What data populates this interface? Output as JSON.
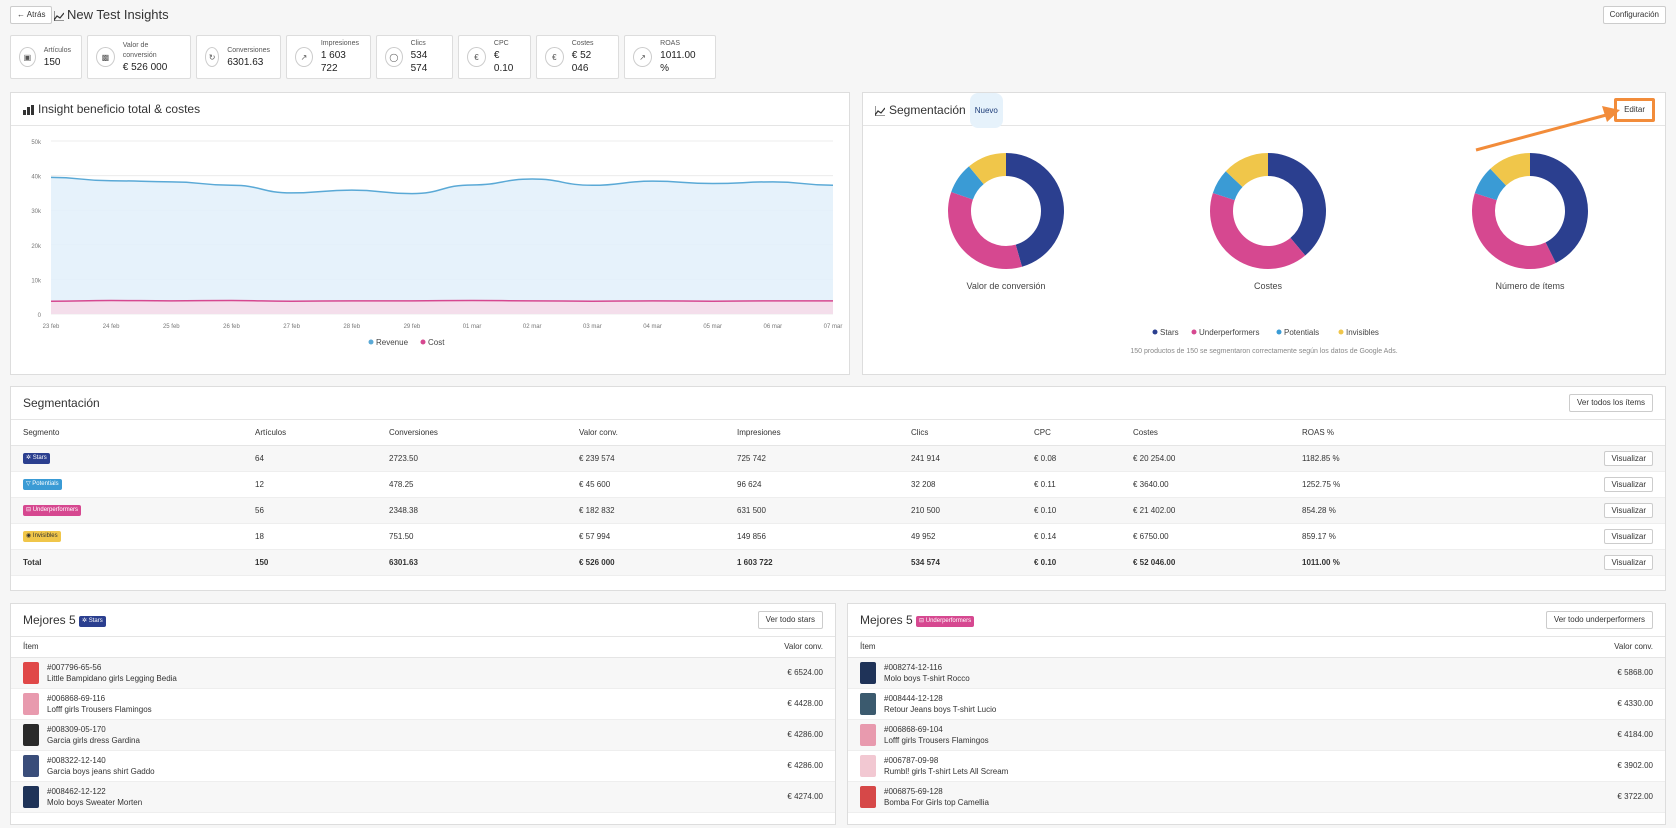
{
  "header": {
    "back_label": "Atrás",
    "title": "New Test Insights",
    "config_label": "Configuración"
  },
  "kpis": [
    {
      "label": "Artículos",
      "value": "150",
      "icon": "box-icon"
    },
    {
      "label": "Valor de conversión",
      "value": "€ 526 000",
      "icon": "money-icon"
    },
    {
      "label": "Conversiones",
      "value": "6301.63",
      "icon": "refresh-icon"
    },
    {
      "label": "Impresiones",
      "value": "1 603 722",
      "icon": "chart-icon"
    },
    {
      "label": "Clics",
      "value": "534 574",
      "icon": "mouse-icon"
    },
    {
      "label": "CPC",
      "value": "€ 0.10",
      "icon": "euro-icon"
    },
    {
      "label": "Costes",
      "value": "€ 52 046",
      "icon": "euro-icon"
    },
    {
      "label": "ROAS",
      "value": "1011.00 %",
      "icon": "chart-icon"
    }
  ],
  "insight": {
    "title": "Insight beneficio total & costes"
  },
  "chart_data": [
    {
      "type": "area",
      "title": "Insight beneficio total & costes",
      "x": [
        "23 feb",
        "24 feb",
        "25 feb",
        "26 feb",
        "27 feb",
        "28 feb",
        "29 feb",
        "01 mar",
        "02 mar",
        "03 mar",
        "04 mar",
        "05 mar",
        "06 mar",
        "07 mar"
      ],
      "y_ticks": [
        "0",
        "10k",
        "20k",
        "30k",
        "40k",
        "50k"
      ],
      "ylim": [
        0,
        50000
      ],
      "grid": true,
      "legend": "bottom",
      "series": [
        {
          "name": "Revenue",
          "color": "#5aa9d6",
          "values": [
            39500,
            38500,
            38200,
            37200,
            35000,
            35800,
            34800,
            37300,
            39000,
            37200,
            38400,
            37700,
            38200,
            37200
          ]
        },
        {
          "name": "Cost",
          "color": "#d64890",
          "values": [
            3700,
            3900,
            3800,
            3900,
            3700,
            3800,
            3800,
            3900,
            3800,
            3700,
            3800,
            3700,
            3800,
            3800
          ]
        }
      ]
    },
    {
      "type": "pie",
      "title": "Valor de conversión",
      "categories": [
        "Stars",
        "Underperformers",
        "Potentials",
        "Invisibles"
      ],
      "values": [
        239574,
        182832,
        45600,
        57994
      ]
    },
    {
      "type": "pie",
      "title": "Costes",
      "categories": [
        "Stars",
        "Underperformers",
        "Potentials",
        "Invisibles"
      ],
      "values": [
        20254,
        21402,
        3640,
        6750
      ]
    },
    {
      "type": "pie",
      "title": "Número de ítems",
      "categories": [
        "Stars",
        "Underperformers",
        "Potentials",
        "Invisibles"
      ],
      "values": [
        64,
        56,
        12,
        18
      ]
    }
  ],
  "segment_card": {
    "title": "Segmentación",
    "badge": "Nuevo",
    "edit_label": "Editar",
    "legend": [
      {
        "name": "Stars",
        "color": "#2b3f8f"
      },
      {
        "name": "Underperformers",
        "color": "#d64890"
      },
      {
        "name": "Potentials",
        "color": "#3a9bd5"
      },
      {
        "name": "Invisibles",
        "color": "#f0c64a"
      }
    ],
    "donut_labels": [
      "Valor de conversión",
      "Costes",
      "Número de ítems"
    ],
    "footnote": "150 productos de 150 se segmentaron correctamente según los datos de Google Ads."
  },
  "segment_table": {
    "title": "Segmentación",
    "view_all_label": "Ver todos los ítems",
    "columns": [
      "Segmento",
      "Artículos",
      "Conversiones",
      "Valor conv.",
      "Impresiones",
      "Clics",
      "CPC",
      "Costes",
      "ROAS %"
    ],
    "rows": [
      {
        "tag": "Stars",
        "color": "#2b3f8f",
        "cells": [
          "64",
          "2723.50",
          "€ 239 574",
          "725 742",
          "241 914",
          "€ 0.08",
          "€ 20 254.00",
          "1182.85 %"
        ],
        "action": "Visualizar"
      },
      {
        "tag": "Potentials",
        "color": "#3a9bd5",
        "cells": [
          "12",
          "478.25",
          "€ 45 600",
          "96 624",
          "32 208",
          "€ 0.11",
          "€ 3640.00",
          "1252.75 %"
        ],
        "action": "Visualizar"
      },
      {
        "tag": "Underperformers",
        "color": "#d64890",
        "cells": [
          "56",
          "2348.38",
          "€ 182 832",
          "631 500",
          "210 500",
          "€ 0.10",
          "€ 21 402.00",
          "854.28 %"
        ],
        "action": "Visualizar"
      },
      {
        "tag": "Invisibles",
        "color": "#f0c64a",
        "cells": [
          "18",
          "751.50",
          "€ 57 994",
          "149 856",
          "49 952",
          "€ 0.14",
          "€ 6750.00",
          "859.17 %"
        ],
        "action": "Visualizar"
      }
    ],
    "total": {
      "label": "Total",
      "cells": [
        "150",
        "6301.63",
        "€ 526 000",
        "1 603 722",
        "534 574",
        "€ 0.10",
        "€ 52 046.00",
        "1011.00 %"
      ],
      "action": "Visualizar"
    }
  },
  "best_stars": {
    "title": "Mejores 5",
    "tag": "Stars",
    "button": "Ver todo stars",
    "col_item": "Ítem",
    "col_value": "Valor conv.",
    "items": [
      {
        "id": "#007796-65-56",
        "name": "Little Bampidano girls Legging Bedia",
        "value": "€ 6524.00",
        "color": "#e04848"
      },
      {
        "id": "#006868-69-116",
        "name": "Lofff girls Trousers Flamingos",
        "value": "€ 4428.00",
        "color": "#e89aae"
      },
      {
        "id": "#008309-05-170",
        "name": "Garcia girls dress Gardina",
        "value": "€ 4286.00",
        "color": "#2a2a2a"
      },
      {
        "id": "#008322-12-140",
        "name": "Garcia boys jeans shirt Gaddo",
        "value": "€ 4286.00",
        "color": "#3a4d7a"
      },
      {
        "id": "#008462-12-122",
        "name": "Molo boys Sweater Morten",
        "value": "€ 4274.00",
        "color": "#1f3358"
      }
    ]
  },
  "best_under": {
    "title": "Mejores 5",
    "tag": "Underperformers",
    "button": "Ver todo underperformers",
    "col_item": "Ítem",
    "col_value": "Valor conv.",
    "items": [
      {
        "id": "#008274-12-116",
        "name": "Molo boys T-shirt Rocco",
        "value": "€ 5868.00",
        "color": "#1f3358"
      },
      {
        "id": "#008444-12-128",
        "name": "Retour Jeans boys T-shirt Lucio",
        "value": "€ 4330.00",
        "color": "#3b5a6e"
      },
      {
        "id": "#006868-69-104",
        "name": "Lofff girls Trousers Flamingos",
        "value": "€ 4184.00",
        "color": "#e89aae"
      },
      {
        "id": "#006787-09-98",
        "name": "Rumbl! girls T-shirt Lets All Scream",
        "value": "€ 3902.00",
        "color": "#f2c8d2"
      },
      {
        "id": "#006875-69-128",
        "name": "Bomba For Girls top Camellia",
        "value": "€ 3722.00",
        "color": "#d64848"
      }
    ]
  }
}
